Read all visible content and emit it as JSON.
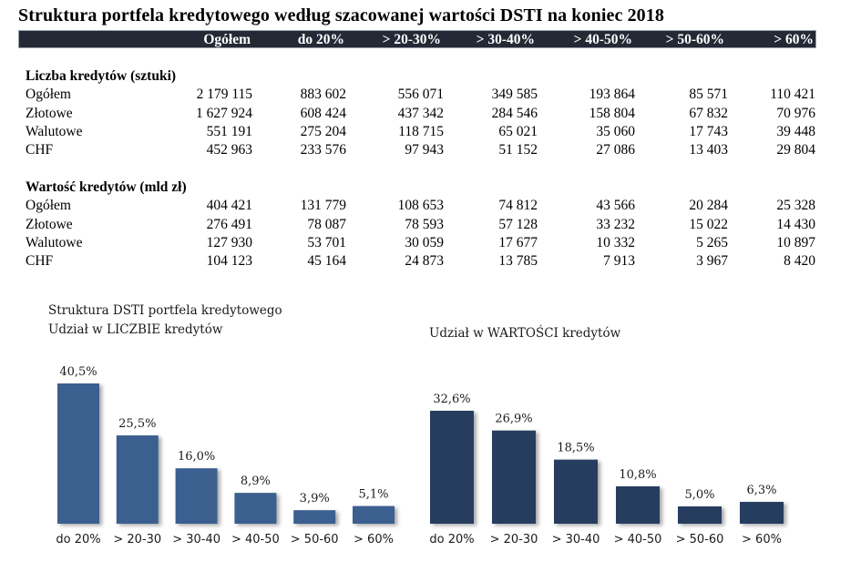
{
  "title": "Struktura portfela kredytowego według szacowanej wartości DSTI na koniec 2018",
  "table": {
    "columns": [
      "Ogółem",
      "do 20%",
      "> 20-30%",
      "> 30-40%",
      "> 40-50%",
      "> 50-60%",
      "> 60%"
    ],
    "sections": [
      {
        "heading": "Liczba kredytów (sztuki)",
        "rows": [
          {
            "label": "Ogółem",
            "values": [
              "2 179 115",
              "883 602",
              "556 071",
              "349 585",
              "193 864",
              "85 571",
              "110 421"
            ]
          },
          {
            "label": "Złotowe",
            "values": [
              "1 627 924",
              "608 424",
              "437 342",
              "284 546",
              "158 804",
              "67 832",
              "70 976"
            ]
          },
          {
            "label": "Walutowe",
            "values": [
              "551 191",
              "275 204",
              "118 715",
              "65 021",
              "35 060",
              "17 743",
              "39 448"
            ]
          },
          {
            "label": "CHF",
            "values": [
              "452 963",
              "233 576",
              "97 943",
              "51 152",
              "27 086",
              "13 403",
              "29 804"
            ]
          }
        ]
      },
      {
        "heading": "Wartość kredytów (mld zł)",
        "rows": [
          {
            "label": "Ogółem",
            "values": [
              "404 421",
              "131 779",
              "108 653",
              "74 812",
              "43 566",
              "20 284",
              "25 328"
            ]
          },
          {
            "label": "Złotowe",
            "values": [
              "276 491",
              "78 087",
              "78 593",
              "57 128",
              "33 232",
              "15 022",
              "14 430"
            ]
          },
          {
            "label": "Walutowe",
            "values": [
              "127 930",
              "53 701",
              "30 059",
              "17 677",
              "10 332",
              "5 265",
              "10 897"
            ]
          },
          {
            "label": "CHF",
            "values": [
              "104 123",
              "45 164",
              "24 873",
              "13 785",
              "7 913",
              "3 967",
              "8 420"
            ]
          }
        ]
      }
    ]
  },
  "chart_data": [
    {
      "type": "bar",
      "title": "Struktura DSTI portfela kredytowego",
      "subtitle": "Udział  w LICZBIE  kredytów",
      "categories": [
        "do 20%",
        "> 20-30",
        "> 30-40",
        "> 40-50",
        "> 50-60",
        "> 60%"
      ],
      "values": [
        40.5,
        25.5,
        16.0,
        8.9,
        3.9,
        5.1
      ],
      "data_labels": [
        "40,5%",
        "25,5%",
        "16,0%",
        "8,9%",
        "3,9%",
        "5,1%"
      ],
      "xlabel": "",
      "ylabel": "",
      "ylim": [
        0,
        40.5
      ],
      "grid": false,
      "color": "#3a5f8f"
    },
    {
      "type": "bar",
      "title": "",
      "subtitle": "Udział  w WARTOŚCI  kredytów",
      "categories": [
        "do 20%",
        "> 20-30",
        "> 30-40",
        "> 40-50",
        "> 50-60",
        "> 60%"
      ],
      "values": [
        32.6,
        26.9,
        18.5,
        10.8,
        5.0,
        6.3
      ],
      "data_labels": [
        "32,6%",
        "26,9%",
        "18,5%",
        "10,8%",
        "5,0%",
        "6,3%"
      ],
      "xlabel": "",
      "ylabel": "",
      "ylim": [
        0,
        32.6
      ],
      "grid": false,
      "color": "#253d5e"
    }
  ]
}
